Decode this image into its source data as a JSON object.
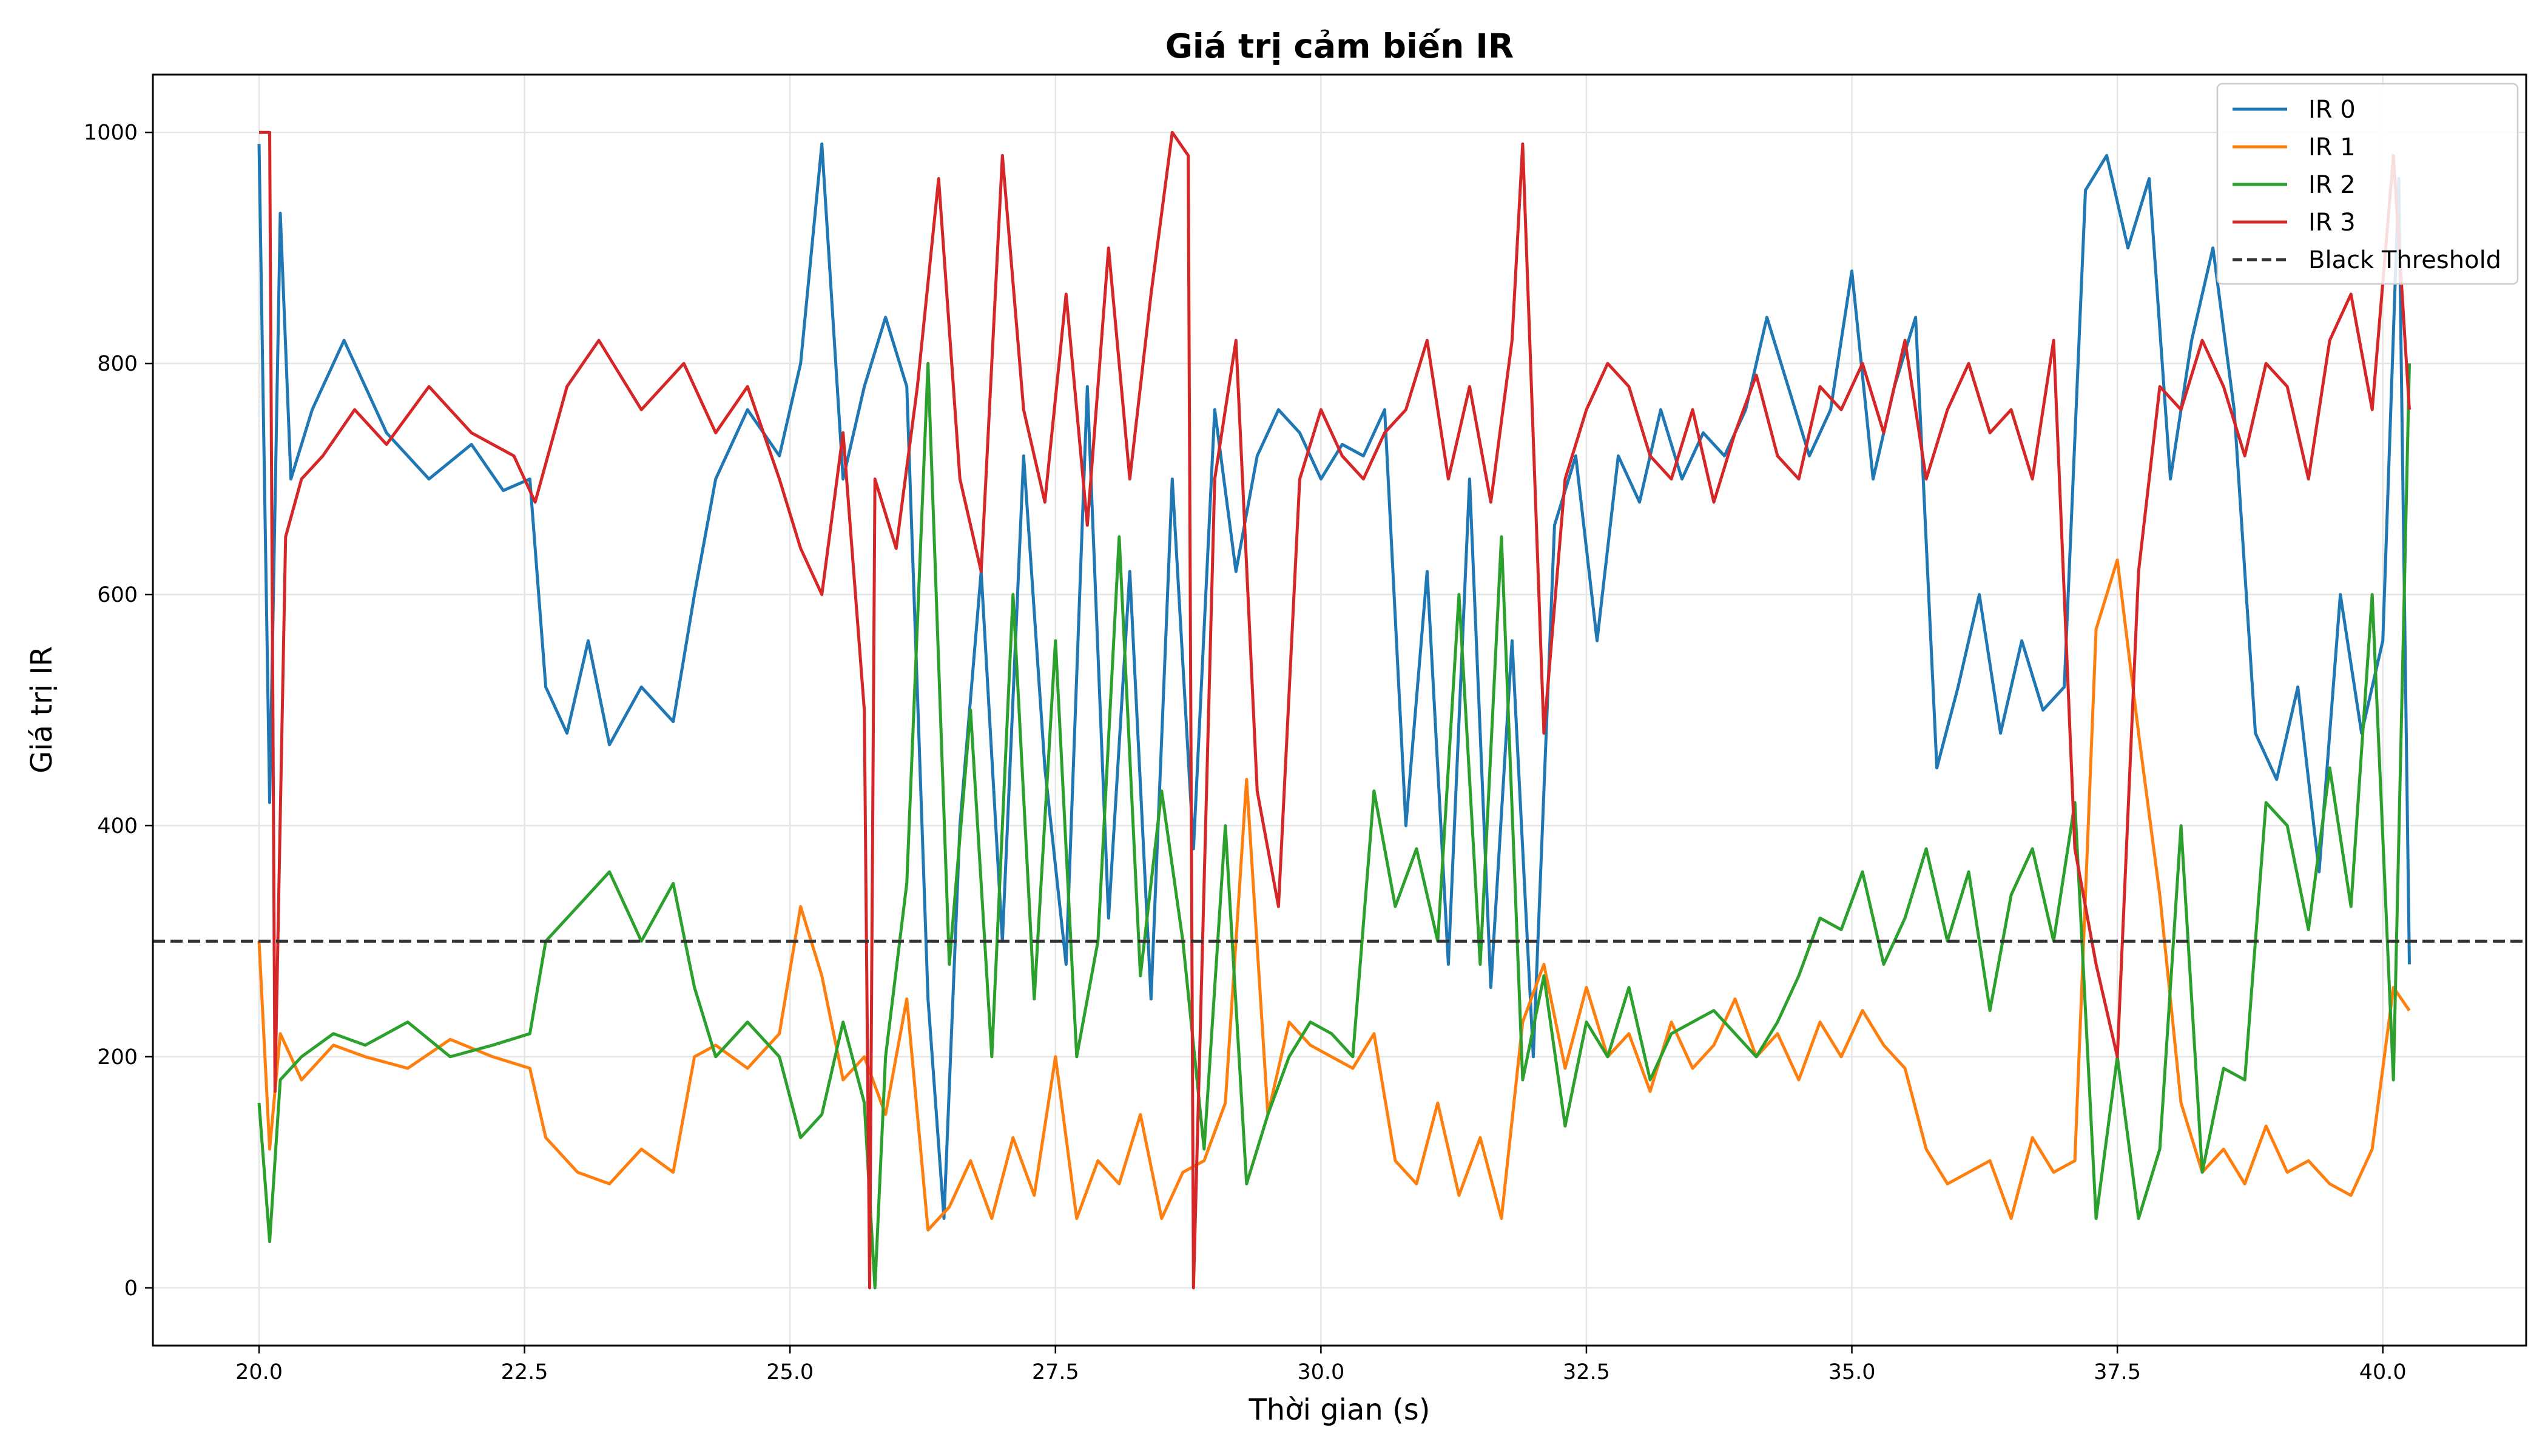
{
  "chart_data": {
    "type": "line",
    "title": "Giá trị cảm biến IR",
    "xlabel": "Thời gian (s)",
    "ylabel": "Giá trị IR",
    "xlim": [
      19.0,
      41.35
    ],
    "ylim": [
      -50,
      1050
    ],
    "xticks": [
      20.0,
      22.5,
      25.0,
      27.5,
      30.0,
      32.5,
      35.0,
      37.5,
      40.0
    ],
    "xtick_labels": [
      "20.0",
      "22.5",
      "25.0",
      "27.5",
      "30.0",
      "32.5",
      "35.0",
      "37.5",
      "40.0"
    ],
    "yticks": [
      0,
      200,
      400,
      600,
      800,
      1000
    ],
    "ytick_labels": [
      "0",
      "200",
      "400",
      "600",
      "800",
      "1000"
    ],
    "grid": true,
    "legend_position": "top-right",
    "series": [
      {
        "name": "IR 0",
        "color": "#1f77b4",
        "x": [
          20.0,
          20.1,
          20.2,
          20.3,
          20.5,
          20.8,
          21.2,
          21.6,
          22.0,
          22.3,
          22.55,
          22.7,
          22.9,
          23.1,
          23.3,
          23.6,
          23.9,
          24.1,
          24.3,
          24.6,
          24.9,
          25.1,
          25.3,
          25.5,
          25.7,
          25.9,
          26.1,
          26.3,
          26.45,
          26.6,
          26.8,
          27.0,
          27.2,
          27.4,
          27.6,
          27.8,
          28.0,
          28.2,
          28.4,
          28.6,
          28.8,
          29.0,
          29.2,
          29.4,
          29.6,
          29.8,
          30.0,
          30.2,
          30.4,
          30.6,
          30.8,
          31.0,
          31.2,
          31.4,
          31.6,
          31.8,
          32.0,
          32.2,
          32.4,
          32.6,
          32.8,
          33.0,
          33.2,
          33.4,
          33.6,
          33.8,
          34.0,
          34.2,
          34.4,
          34.6,
          34.8,
          35.0,
          35.2,
          35.4,
          35.6,
          35.8,
          36.0,
          36.2,
          36.4,
          36.6,
          36.8,
          37.0,
          37.2,
          37.4,
          37.6,
          37.8,
          38.0,
          38.2,
          38.4,
          38.6,
          38.8,
          39.0,
          39.2,
          39.4,
          39.6,
          39.8,
          40.0,
          40.15,
          40.25
        ],
        "y": [
          990,
          420,
          930,
          700,
          760,
          820,
          740,
          700,
          730,
          690,
          700,
          520,
          480,
          560,
          470,
          520,
          490,
          600,
          700,
          760,
          720,
          800,
          990,
          700,
          780,
          840,
          780,
          250,
          60,
          400,
          620,
          300,
          720,
          450,
          280,
          780,
          320,
          620,
          250,
          700,
          380,
          760,
          620,
          720,
          760,
          740,
          700,
          730,
          720,
          760,
          400,
          620,
          280,
          700,
          260,
          560,
          200,
          660,
          720,
          560,
          720,
          680,
          760,
          700,
          740,
          720,
          760,
          840,
          780,
          720,
          760,
          880,
          700,
          780,
          840,
          450,
          520,
          600,
          480,
          560,
          500,
          520,
          950,
          980,
          900,
          960,
          700,
          820,
          900,
          760,
          480,
          440,
          520,
          360,
          600,
          480,
          560,
          960,
          280
        ]
      },
      {
        "name": "IR 1",
        "color": "#ff7f0e",
        "x": [
          20.0,
          20.1,
          20.2,
          20.4,
          20.7,
          21.0,
          21.4,
          21.8,
          22.2,
          22.55,
          22.7,
          23.0,
          23.3,
          23.6,
          23.9,
          24.1,
          24.3,
          24.6,
          24.9,
          25.1,
          25.3,
          25.5,
          25.7,
          25.9,
          26.1,
          26.3,
          26.5,
          26.7,
          26.9,
          27.1,
          27.3,
          27.5,
          27.7,
          27.9,
          28.1,
          28.3,
          28.5,
          28.7,
          28.9,
          29.1,
          29.3,
          29.5,
          29.7,
          29.9,
          30.1,
          30.3,
          30.5,
          30.7,
          30.9,
          31.1,
          31.3,
          31.5,
          31.7,
          31.9,
          32.1,
          32.3,
          32.5,
          32.7,
          32.9,
          33.1,
          33.3,
          33.5,
          33.7,
          33.9,
          34.1,
          34.3,
          34.5,
          34.7,
          34.9,
          35.1,
          35.3,
          35.5,
          35.7,
          35.9,
          36.1,
          36.3,
          36.5,
          36.7,
          36.9,
          37.1,
          37.3,
          37.5,
          37.7,
          37.9,
          38.1,
          38.3,
          38.5,
          38.7,
          38.9,
          39.1,
          39.3,
          39.5,
          39.7,
          39.9,
          40.1,
          40.25
        ],
        "y": [
          300,
          120,
          220,
          180,
          210,
          200,
          190,
          215,
          200,
          190,
          130,
          100,
          90,
          120,
          100,
          200,
          210,
          190,
          220,
          330,
          270,
          180,
          200,
          150,
          250,
          50,
          70,
          110,
          60,
          130,
          80,
          200,
          60,
          110,
          90,
          150,
          60,
          100,
          110,
          160,
          440,
          150,
          230,
          210,
          200,
          190,
          220,
          110,
          90,
          160,
          80,
          130,
          60,
          230,
          280,
          190,
          260,
          200,
          220,
          170,
          230,
          190,
          210,
          250,
          200,
          220,
          180,
          230,
          200,
          240,
          210,
          190,
          120,
          90,
          100,
          110,
          60,
          130,
          100,
          110,
          570,
          630,
          480,
          340,
          160,
          100,
          120,
          90,
          140,
          100,
          110,
          90,
          80,
          120,
          260,
          240
        ]
      },
      {
        "name": "IR 2",
        "color": "#2ca02c",
        "x": [
          20.0,
          20.1,
          20.2,
          20.4,
          20.7,
          21.0,
          21.4,
          21.8,
          22.2,
          22.55,
          22.7,
          23.0,
          23.3,
          23.6,
          23.9,
          24.1,
          24.3,
          24.6,
          24.9,
          25.1,
          25.3,
          25.5,
          25.7,
          25.8,
          25.9,
          26.1,
          26.3,
          26.5,
          26.7,
          26.9,
          27.1,
          27.3,
          27.5,
          27.7,
          27.9,
          28.1,
          28.3,
          28.5,
          28.7,
          28.9,
          29.1,
          29.3,
          29.5,
          29.7,
          29.9,
          30.1,
          30.3,
          30.5,
          30.7,
          30.9,
          31.1,
          31.3,
          31.5,
          31.7,
          31.9,
          32.1,
          32.3,
          32.5,
          32.7,
          32.9,
          33.1,
          33.3,
          33.5,
          33.7,
          33.9,
          34.1,
          34.3,
          34.5,
          34.7,
          34.9,
          35.1,
          35.3,
          35.5,
          35.7,
          35.9,
          36.1,
          36.3,
          36.5,
          36.7,
          36.9,
          37.1,
          37.3,
          37.5,
          37.7,
          37.9,
          38.1,
          38.3,
          38.5,
          38.7,
          38.9,
          39.1,
          39.3,
          39.5,
          39.7,
          39.9,
          40.1,
          40.25
        ],
        "y": [
          160,
          40,
          180,
          200,
          220,
          210,
          230,
          200,
          210,
          220,
          300,
          330,
          360,
          300,
          350,
          260,
          200,
          230,
          200,
          130,
          150,
          230,
          160,
          0,
          200,
          350,
          800,
          280,
          500,
          200,
          600,
          250,
          560,
          200,
          300,
          650,
          270,
          430,
          300,
          120,
          400,
          90,
          150,
          200,
          230,
          220,
          200,
          430,
          330,
          380,
          300,
          600,
          280,
          650,
          180,
          270,
          140,
          230,
          200,
          260,
          180,
          220,
          230,
          240,
          220,
          200,
          230,
          270,
          320,
          310,
          360,
          280,
          320,
          380,
          300,
          360,
          240,
          340,
          380,
          300,
          420,
          60,
          200,
          60,
          120,
          400,
          100,
          190,
          180,
          420,
          400,
          310,
          450,
          330,
          600,
          180,
          800
        ]
      },
      {
        "name": "IR 3",
        "color": "#d62728",
        "x": [
          20.0,
          20.1,
          20.15,
          20.25,
          20.4,
          20.6,
          20.9,
          21.2,
          21.6,
          22.0,
          22.4,
          22.6,
          22.9,
          23.2,
          23.6,
          24.0,
          24.3,
          24.6,
          24.9,
          25.1,
          25.3,
          25.5,
          25.7,
          25.75,
          25.8,
          26.0,
          26.2,
          26.4,
          26.6,
          26.8,
          27.0,
          27.2,
          27.4,
          27.6,
          27.8,
          28.0,
          28.2,
          28.4,
          28.6,
          28.75,
          28.8,
          29.0,
          29.2,
          29.4,
          29.6,
          29.8,
          30.0,
          30.2,
          30.4,
          30.6,
          30.8,
          31.0,
          31.2,
          31.4,
          31.6,
          31.8,
          31.9,
          32.1,
          32.3,
          32.5,
          32.7,
          32.9,
          33.1,
          33.3,
          33.5,
          33.7,
          33.9,
          34.1,
          34.3,
          34.5,
          34.7,
          34.9,
          35.1,
          35.3,
          35.5,
          35.7,
          35.9,
          36.1,
          36.3,
          36.5,
          36.7,
          36.9,
          37.1,
          37.3,
          37.5,
          37.7,
          37.9,
          38.1,
          38.3,
          38.5,
          38.7,
          38.9,
          39.1,
          39.3,
          39.5,
          39.7,
          39.9,
          40.1,
          40.25
        ],
        "y": [
          1000,
          1000,
          170,
          650,
          700,
          720,
          760,
          730,
          780,
          740,
          720,
          680,
          780,
          820,
          760,
          800,
          740,
          780,
          700,
          640,
          600,
          740,
          500,
          0,
          700,
          640,
          780,
          960,
          700,
          620,
          980,
          760,
          680,
          860,
          660,
          900,
          700,
          860,
          1000,
          980,
          0,
          700,
          820,
          430,
          330,
          700,
          760,
          720,
          700,
          740,
          760,
          820,
          700,
          780,
          680,
          820,
          990,
          480,
          700,
          760,
          800,
          780,
          720,
          700,
          760,
          680,
          740,
          790,
          720,
          700,
          780,
          760,
          800,
          740,
          820,
          700,
          760,
          800,
          740,
          760,
          700,
          820,
          380,
          280,
          200,
          620,
          780,
          760,
          820,
          780,
          720,
          800,
          780,
          700,
          820,
          860,
          760,
          980,
          760
        ]
      }
    ],
    "threshold": {
      "name": "Black Threshold",
      "value": 300,
      "color": "#333333",
      "style": "dashed"
    }
  }
}
